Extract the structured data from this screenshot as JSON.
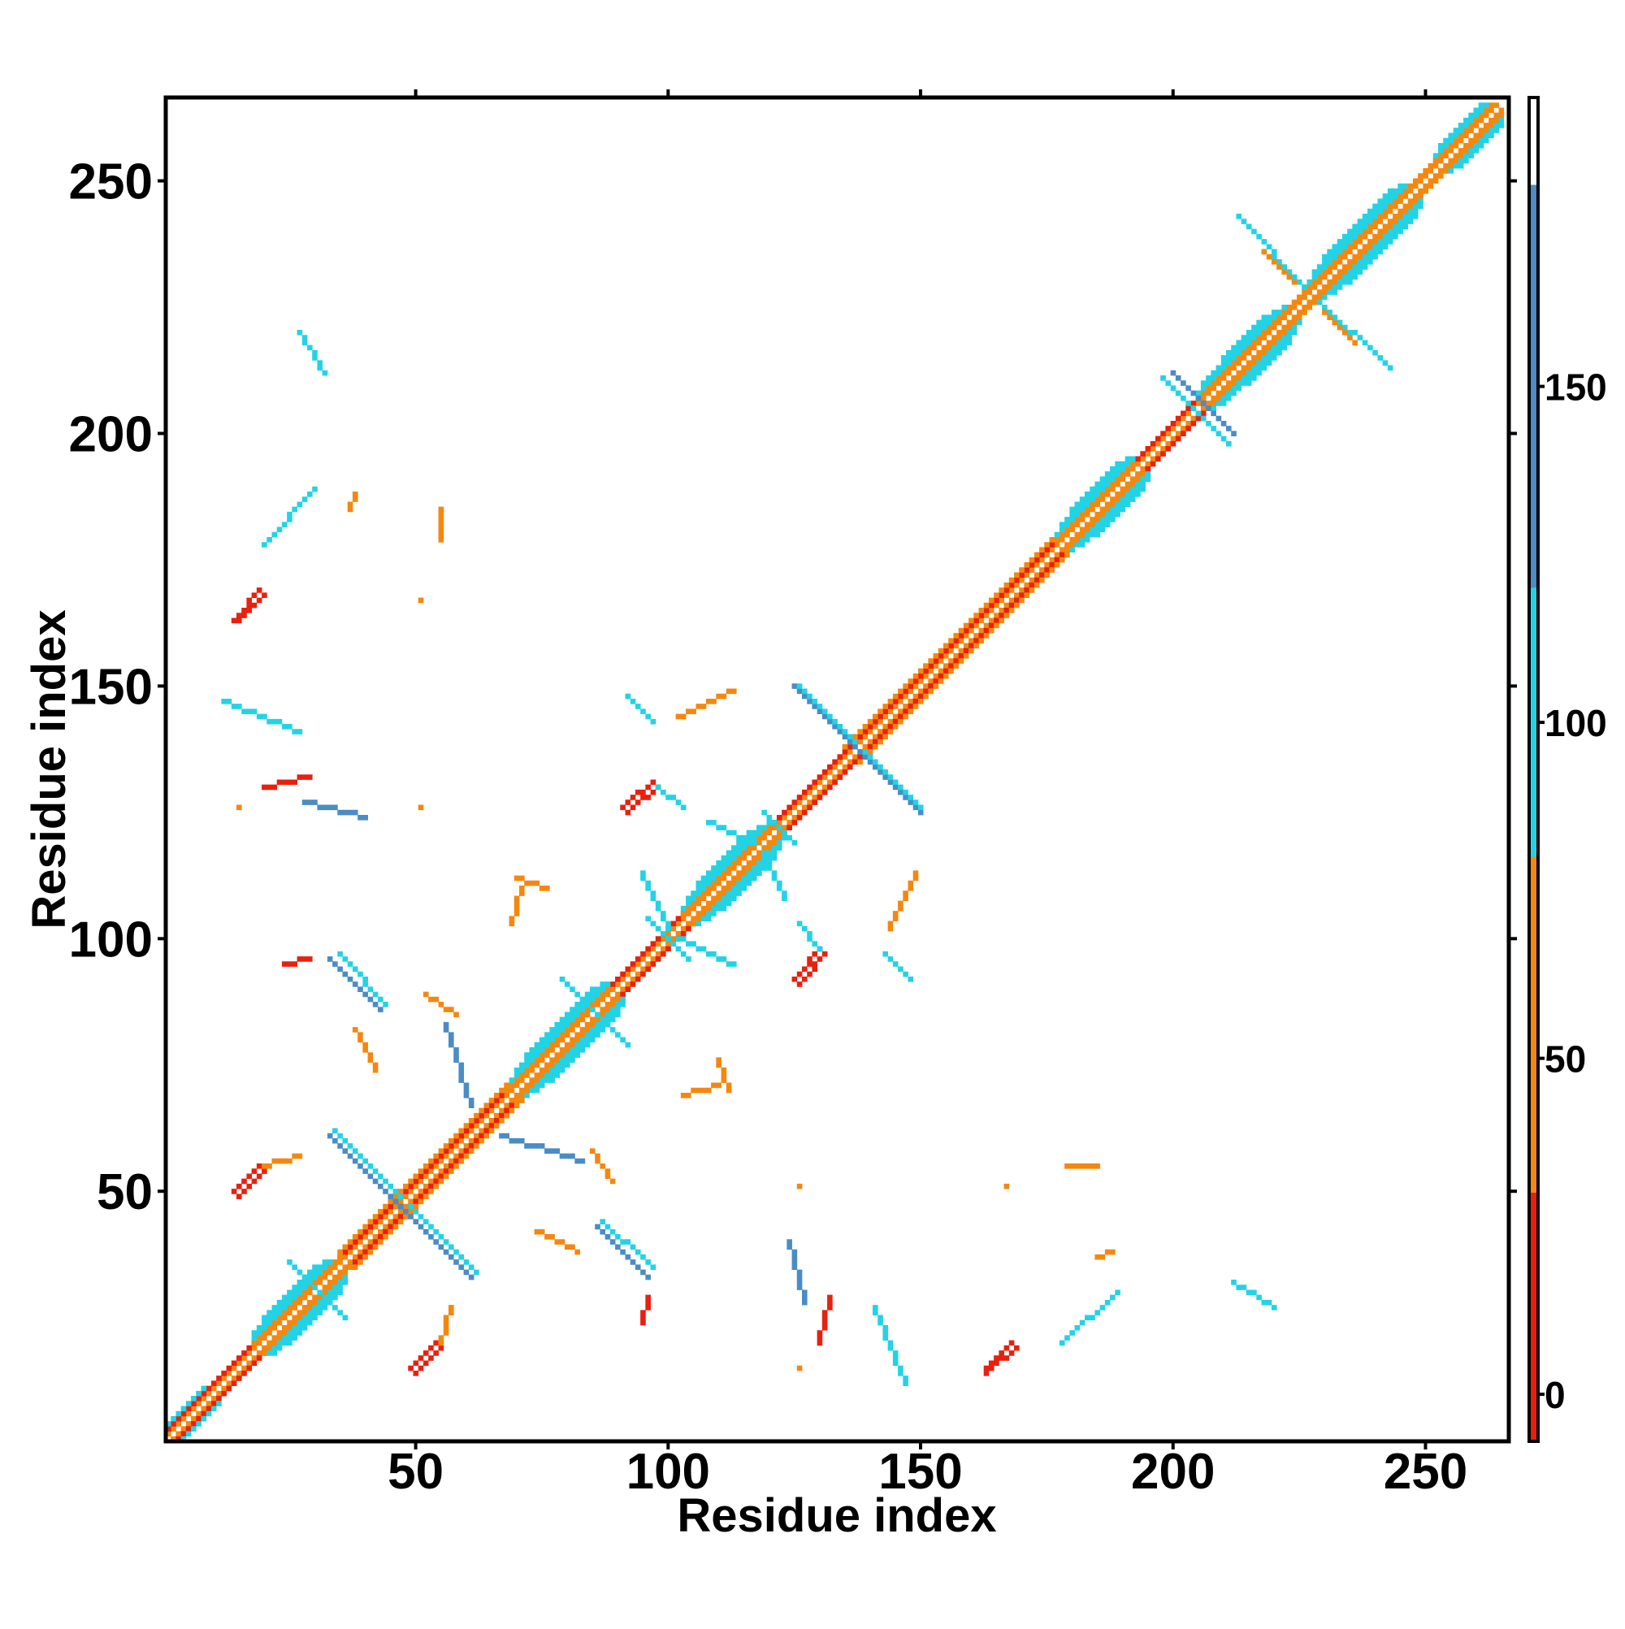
{
  "chart_data": {
    "type": "contact-map",
    "xlabel": "Residue index",
    "ylabel": "Residue index",
    "xlim": [
      0.5,
      266.5
    ],
    "ylim": [
      0.5,
      266.5
    ],
    "xticks": [
      50,
      100,
      150,
      200,
      250
    ],
    "yticks": [
      50,
      100,
      150,
      200,
      250
    ],
    "symmetric": true,
    "colorbar": {
      "lim": [
        -7,
        193
      ],
      "ticks": [
        0,
        50,
        100,
        150
      ],
      "boundaries": [
        -7,
        30,
        80,
        120,
        180,
        193
      ],
      "colors": [
        "#e8200e",
        "#f5870f",
        "#22d3e6",
        "#4a8cc6",
        "#ffffff"
      ]
    },
    "runs": [
      [
        1,
        2,
        264,
        265,
        55
      ],
      [
        1,
        3,
        18,
        20,
        10
      ],
      [
        35,
        37,
        68,
        70,
        10
      ],
      [
        88,
        90,
        103,
        105,
        10
      ],
      [
        120,
        122,
        150,
        152,
        10
      ],
      [
        150,
        152,
        177,
        179,
        10
      ],
      [
        192,
        194,
        205,
        207,
        10
      ],
      [
        18,
        20,
        35,
        37,
        60
      ],
      [
        68,
        70,
        88,
        90,
        60
      ],
      [
        103,
        105,
        120,
        122,
        60
      ],
      [
        177,
        179,
        192,
        194,
        60
      ],
      [
        205,
        207,
        252,
        254,
        60
      ],
      [
        252,
        254,
        263,
        265,
        60
      ],
      [
        1,
        4,
        8,
        11,
        100
      ],
      [
        18,
        21,
        33,
        36,
        100
      ],
      [
        68,
        71,
        88,
        91,
        100
      ],
      [
        103,
        106,
        120,
        123,
        100
      ],
      [
        177,
        180,
        192,
        195,
        100
      ],
      [
        205,
        208,
        222,
        225,
        100
      ],
      [
        226,
        229,
        246,
        249,
        100
      ],
      [
        252,
        255,
        262,
        265,
        100
      ],
      [
        35,
        38,
        68,
        71,
        50
      ],
      [
        135,
        138,
        176,
        179,
        55
      ],
      [
        18,
        22,
        32,
        36,
        105
      ],
      [
        70,
        74,
        87,
        91,
        105
      ],
      [
        104,
        108,
        118,
        122,
        105
      ],
      [
        178,
        182,
        191,
        195,
        105
      ],
      [
        206,
        210,
        220,
        224,
        105
      ],
      [
        228,
        232,
        245,
        249,
        105
      ],
      [
        253,
        257,
        261,
        265,
        105
      ],
      [
        20,
        25,
        30,
        35,
        95
      ],
      [
        72,
        77,
        85,
        90,
        95
      ],
      [
        106,
        111,
        116,
        121,
        95
      ],
      [
        180,
        185,
        189,
        194,
        95
      ],
      [
        210,
        215,
        218,
        223,
        95
      ],
      [
        230,
        235,
        243,
        248,
        95
      ],
      [
        33,
        61,
        47,
        47,
        150
      ],
      [
        34,
        62,
        47,
        49,
        105
      ],
      [
        125,
        150,
        137,
        138,
        150
      ],
      [
        126,
        150,
        137,
        139,
        105
      ],
      [
        198,
        211,
        205,
        204,
        110
      ],
      [
        200,
        212,
        206,
        206,
        145
      ],
      [
        79,
        92,
        85,
        86,
        110
      ],
      [
        96,
        104,
        100,
        100,
        105
      ],
      [
        119,
        125,
        122,
        122,
        110
      ],
      [
        213,
        243,
        226,
        229,
        100
      ],
      [
        218,
        236,
        224,
        230,
        60
      ],
      [
        25,
        36,
        30,
        31,
        110
      ],
      [
        14,
        163,
        19,
        169,
        8
      ],
      [
        15,
        163,
        20,
        168,
        25
      ],
      [
        14,
        50,
        19,
        55,
        8
      ],
      [
        15,
        49,
        20,
        54,
        25
      ],
      [
        20,
        55,
        27,
        57,
        60
      ],
      [
        27,
        220,
        32,
        212,
        100
      ],
      [
        20,
        178,
        30,
        189,
        95
      ],
      [
        12,
        147,
        27,
        141,
        110
      ],
      [
        20,
        130,
        29,
        132,
        15
      ],
      [
        28,
        127,
        40,
        124,
        130
      ],
      [
        55,
        185,
        55,
        179,
        55
      ],
      [
        24,
        95,
        29,
        96,
        12
      ],
      [
        33,
        96,
        43,
        86,
        150
      ],
      [
        35,
        97,
        44,
        87,
        105
      ],
      [
        38,
        82,
        42,
        74,
        55
      ],
      [
        52,
        89,
        58,
        85,
        60
      ],
      [
        56,
        83,
        61,
        67,
        120
      ],
      [
        70,
        112,
        76,
        110,
        55
      ],
      [
        69,
        103,
        71,
        110,
        55
      ],
      [
        91,
        126,
        97,
        131,
        5
      ],
      [
        92,
        125,
        98,
        130,
        25
      ],
      [
        98,
        130,
        103,
        126,
        110
      ],
      [
        108,
        123,
        117,
        119,
        100
      ],
      [
        92,
        148,
        97,
        143,
        110
      ],
      [
        102,
        144,
        113,
        149,
        30
      ],
      [
        95,
        113,
        100,
        102,
        110
      ],
      [
        15,
        126,
        15,
        126,
        55
      ],
      [
        51,
        126,
        51,
        126,
        55
      ],
      [
        51,
        167,
        51,
        167,
        55
      ],
      [
        37,
        185,
        38,
        188,
        55
      ]
    ]
  }
}
